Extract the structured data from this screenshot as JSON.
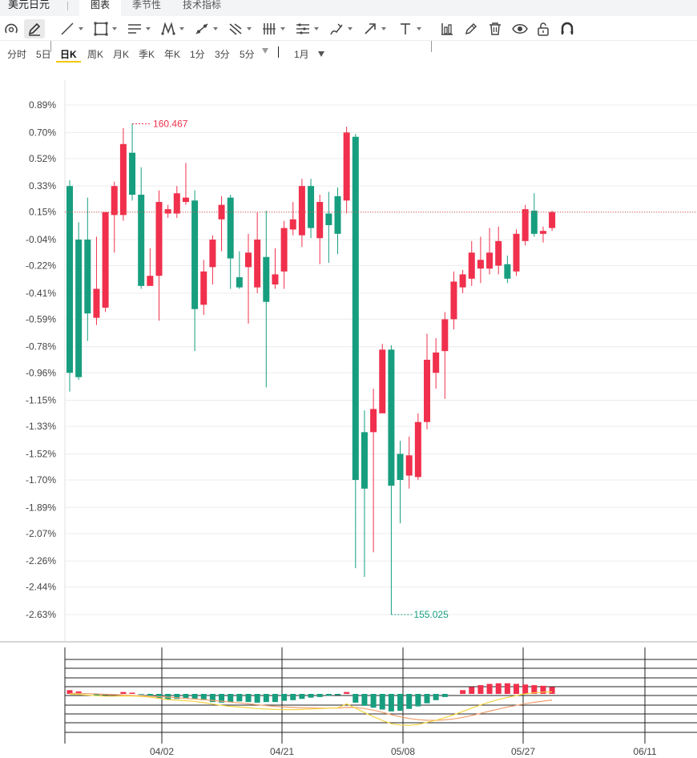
{
  "app": {
    "title": "美元日元",
    "tabs": [
      {
        "label": "图表",
        "active": true
      },
      {
        "label": "季节性",
        "active": false
      },
      {
        "label": "技术指标",
        "active": false
      }
    ]
  },
  "toolbar": {
    "tools": [
      "magnet-icon",
      "pencil-icon",
      "line-icon",
      "rectangle-icon",
      "parallel-lines-icon",
      "zigzag-icon",
      "trend-line-icon",
      "scissor-lines-icon",
      "vertical-lines-icon",
      "horizontal-lines-icon",
      "brush-icon",
      "arrow-icon",
      "text-icon",
      "bar-chart-icon",
      "edit-icon",
      "trash-icon",
      "eye-icon",
      "unlock-icon",
      "magnet-u-icon"
    ]
  },
  "periods": [
    {
      "label": "分时",
      "active": false
    },
    {
      "label": "5日",
      "active": false
    },
    {
      "label": "日K",
      "active": true
    },
    {
      "label": "周K",
      "active": false
    },
    {
      "label": "月K",
      "active": false
    },
    {
      "label": "季K",
      "active": false
    },
    {
      "label": "年K",
      "active": false
    },
    {
      "label": "1分",
      "active": false
    },
    {
      "label": "3分",
      "active": false
    },
    {
      "label": "5分",
      "active": false
    }
  ],
  "month_select": "1月",
  "chart_data": {
    "type": "candlestick",
    "y_axis_labels": [
      "0.89%",
      "0.70%",
      "0.52%",
      "0.33%",
      "0.15%",
      "-0.04%",
      "-0.22%",
      "-0.41%",
      "-0.59%",
      "-0.78%",
      "-0.96%",
      "-1.15%",
      "-1.33%",
      "-1.52%",
      "-1.70%",
      "-1.89%",
      "-2.07%",
      "-2.26%",
      "-2.44%",
      "-2.63%"
    ],
    "y_axis_values": [
      0.89,
      0.7,
      0.52,
      0.33,
      0.15,
      -0.04,
      -0.22,
      -0.41,
      -0.59,
      -0.78,
      -0.96,
      -1.15,
      -1.33,
      -1.52,
      -1.7,
      -1.89,
      -2.07,
      -2.26,
      -2.44,
      -2.63
    ],
    "ylim": [
      -2.63,
      0.89
    ],
    "x_axis_labels": [
      "04/02",
      "04/21",
      "05/08",
      "05/27",
      "06/11"
    ],
    "reference_line_pct": 0.15,
    "high_label": "160.467",
    "low_label": "155.025",
    "colors": {
      "up": "#f0304c",
      "down": "#179e7f",
      "ref": "#d9534f"
    },
    "candles": [
      {
        "o": 0.33,
        "c": -0.96,
        "h": 0.37,
        "l": -1.09
      },
      {
        "o": -0.04,
        "c": -0.99,
        "h": 0.08,
        "l": -1.01
      },
      {
        "o": -0.04,
        "c": -0.55,
        "h": 0.25,
        "l": -0.74
      },
      {
        "o": -0.58,
        "c": -0.38,
        "h": -0.02,
        "l": -0.63
      },
      {
        "o": -0.51,
        "c": 0.15,
        "h": 0.15,
        "l": -0.54
      },
      {
        "o": 0.13,
        "c": 0.33,
        "h": 0.36,
        "l": -0.13
      },
      {
        "o": 0.13,
        "c": 0.62,
        "h": 0.73,
        "l": 0.09
      },
      {
        "o": 0.56,
        "c": 0.27,
        "h": 0.76,
        "l": 0.23
      },
      {
        "o": 0.27,
        "c": -0.36,
        "h": 0.46,
        "l": -0.38
      },
      {
        "o": -0.36,
        "c": -0.29,
        "h": -0.1,
        "l": -0.33
      },
      {
        "o": -0.29,
        "c": 0.22,
        "h": 0.3,
        "l": -0.6
      },
      {
        "o": 0.14,
        "c": 0.17,
        "h": 0.2,
        "l": 0.11
      },
      {
        "o": 0.14,
        "c": 0.28,
        "h": 0.33,
        "l": 0.11
      },
      {
        "o": 0.22,
        "c": 0.25,
        "h": 0.49,
        "l": 0.2
      },
      {
        "o": 0.23,
        "c": -0.52,
        "h": 0.3,
        "l": -0.81
      },
      {
        "o": -0.49,
        "c": -0.26,
        "h": -0.18,
        "l": -0.56
      },
      {
        "o": -0.23,
        "c": -0.04,
        "h": -0.01,
        "l": -0.35
      },
      {
        "o": 0.1,
        "c": 0.2,
        "h": 0.26,
        "l": -0.12
      },
      {
        "o": 0.25,
        "c": -0.17,
        "h": 0.27,
        "l": -0.38
      },
      {
        "o": -0.3,
        "c": -0.37,
        "h": -0.12,
        "l": -0.38
      },
      {
        "o": -0.23,
        "c": -0.13,
        "h": 0.0,
        "l": -0.62
      },
      {
        "o": -0.37,
        "c": -0.04,
        "h": 0.15,
        "l": -0.41
      },
      {
        "o": -0.16,
        "c": -0.47,
        "h": 0.16,
        "l": -1.06
      },
      {
        "o": -0.35,
        "c": -0.28,
        "h": -0.1,
        "l": -0.38
      },
      {
        "o": -0.26,
        "c": 0.04,
        "h": 0.09,
        "l": -0.38
      },
      {
        "o": 0.03,
        "c": 0.1,
        "h": 0.22,
        "l": -0.01
      },
      {
        "o": -0.01,
        "c": 0.33,
        "h": 0.38,
        "l": -0.09
      },
      {
        "o": 0.33,
        "c": 0.04,
        "h": 0.38,
        "l": -0.03
      },
      {
        "o": -0.03,
        "c": 0.22,
        "h": 0.27,
        "l": -0.21
      },
      {
        "o": 0.14,
        "c": 0.06,
        "h": 0.29,
        "l": -0.2
      },
      {
        "o": 0.26,
        "c": 0.0,
        "h": 0.32,
        "l": -0.14
      },
      {
        "o": 0.23,
        "c": 0.7,
        "h": 0.74,
        "l": 0.14
      },
      {
        "o": 0.67,
        "c": -1.7,
        "h": 0.69,
        "l": -2.31
      },
      {
        "o": -1.37,
        "c": -1.76,
        "h": -1.22,
        "l": -2.37
      },
      {
        "o": -1.37,
        "c": -1.21,
        "h": -1.07,
        "l": -2.2
      },
      {
        "o": -1.24,
        "c": -0.8,
        "h": -0.76,
        "l": -1.22
      },
      {
        "o": -0.8,
        "c": -1.74,
        "h": -0.77,
        "l": -2.63
      },
      {
        "o": -1.52,
        "c": -1.7,
        "h": -1.43,
        "l": -2.0
      },
      {
        "o": -1.67,
        "c": -1.53,
        "h": -1.4,
        "l": -1.76
      },
      {
        "o": -1.68,
        "c": -1.3,
        "h": -1.24,
        "l": -1.7
      },
      {
        "o": -1.3,
        "c": -0.87,
        "h": -0.69,
        "l": -1.35
      },
      {
        "o": -0.96,
        "c": -0.82,
        "h": -0.72,
        "l": -1.07
      },
      {
        "o": -0.81,
        "c": -0.59,
        "h": -0.54,
        "l": -1.14
      },
      {
        "o": -0.59,
        "c": -0.33,
        "h": -0.26,
        "l": -0.66
      },
      {
        "o": -0.37,
        "c": -0.28,
        "h": -0.25,
        "l": -0.41
      },
      {
        "o": -0.31,
        "c": -0.13,
        "h": -0.05,
        "l": -0.36
      },
      {
        "o": -0.24,
        "c": -0.18,
        "h": -0.02,
        "l": -0.34
      },
      {
        "o": -0.24,
        "c": -0.13,
        "h": 0.04,
        "l": -0.28
      },
      {
        "o": -0.22,
        "c": -0.05,
        "h": 0.05,
        "l": -0.28
      },
      {
        "o": -0.21,
        "c": -0.31,
        "h": -0.15,
        "l": -0.34
      },
      {
        "o": -0.26,
        "c": 0.0,
        "h": 0.03,
        "l": -0.29
      },
      {
        "o": -0.05,
        "c": 0.17,
        "h": 0.2,
        "l": -0.08
      },
      {
        "o": 0.16,
        "c": 0.0,
        "h": 0.28,
        "l": -0.02
      },
      {
        "o": 0.0,
        "c": 0.02,
        "h": 0.05,
        "l": -0.06
      },
      {
        "o": 0.04,
        "c": 0.15,
        "h": 0.16,
        "l": 0.02
      }
    ],
    "macd": {
      "histogram": [
        6,
        4,
        0,
        -3,
        -2,
        0,
        3,
        2,
        -1,
        -4,
        -7,
        -9,
        -8,
        -7,
        -8,
        -10,
        -13,
        -14,
        -13,
        -12,
        -13,
        -14,
        -13,
        -13,
        -11,
        -10,
        -8,
        -6,
        -5,
        -3,
        -2,
        3,
        -14,
        -19,
        -22,
        -25,
        -28,
        -27,
        -24,
        -20,
        -15,
        -10,
        -5,
        0,
        6,
        11,
        14,
        16,
        17,
        17,
        16,
        15,
        14,
        13,
        11
      ],
      "dif": [
        -0.2,
        -0.5,
        -1.0,
        -1.5,
        -1.8,
        -1.8,
        -1.6,
        -1.7,
        -2.0,
        -2.6,
        -3.6,
        -4.6,
        -5.1,
        -5.5,
        -6.0,
        -7.0,
        -8.2,
        -9.2,
        -10.0,
        -10.6,
        -11.2,
        -11.8,
        -12.2,
        -12.5,
        -12.7,
        -12.7,
        -12.5,
        -12.1,
        -11.9,
        -11.5,
        -11.2,
        -8.0,
        -11.5,
        -15.0,
        -18.3,
        -21.4,
        -24.0,
        -25.0,
        -25.3,
        -24.6,
        -23.0,
        -21.2,
        -19.1,
        -16.8,
        -14.2,
        -11.4,
        -8.9,
        -6.6,
        -4.6,
        -2.8,
        -1.3,
        0.0,
        0.9,
        1.4,
        1.6
      ],
      "dea": [
        0.3,
        0.4,
        0.2,
        0.0,
        -0.3,
        -0.6,
        -0.9,
        -1.2,
        -1.5,
        -1.8,
        -2.2,
        -2.6,
        -3.1,
        -3.6,
        -4.1,
        -4.6,
        -5.2,
        -5.9,
        -6.6,
        -7.3,
        -8.0,
        -8.7,
        -9.4,
        -10.0,
        -10.5,
        -10.9,
        -11.2,
        -11.3,
        -11.4,
        -11.4,
        -11.4,
        -10.9,
        -11.0,
        -11.8,
        -13.1,
        -14.8,
        -16.7,
        -18.4,
        -19.8,
        -20.7,
        -21.2,
        -21.3,
        -20.9,
        -20.1,
        -18.9,
        -17.4,
        -15.7,
        -13.9,
        -12.2,
        -10.6,
        -9.2,
        -7.9,
        -6.8,
        -5.8,
        -4.9
      ]
    }
  }
}
